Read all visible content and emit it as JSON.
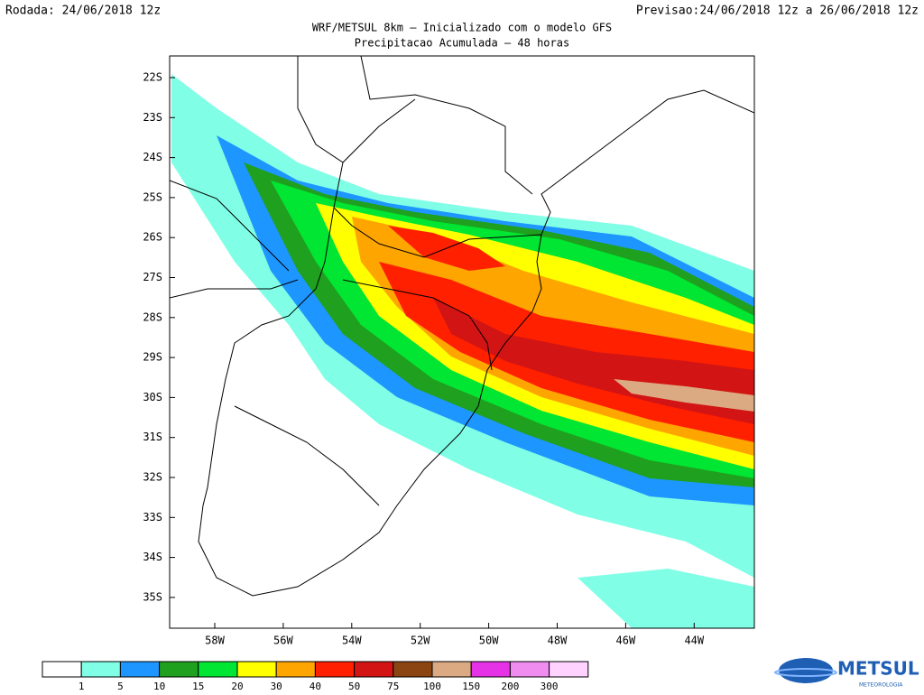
{
  "header": {
    "run": "Rodada: 24/06/2018 12z",
    "forecast": "Previsao:24/06/2018 12z a 26/06/2018 12z",
    "title": "WRF/METSUL 8km – Inicializado com o modelo GFS",
    "subtitle": "Precipitacao Acumulada – 48 horas"
  },
  "map": {
    "latitudes": [
      "22S",
      "23S",
      "24S",
      "25S",
      "26S",
      "27S",
      "28S",
      "29S",
      "30S",
      "31S",
      "32S",
      "33S",
      "34S",
      "35S"
    ],
    "longitudes": [
      "58W",
      "56W",
      "54W",
      "52W",
      "50W",
      "48W",
      "46W",
      "44W"
    ]
  },
  "colorbar": {
    "labels": [
      "1",
      "5",
      "10",
      "15",
      "20",
      "30",
      "40",
      "50",
      "75",
      "100",
      "150",
      "200",
      "300"
    ],
    "colors": [
      "#ffffff",
      "#80ffe6",
      "#1e96ff",
      "#1fa01f",
      "#00e632",
      "#ffff00",
      "#ffa500",
      "#ff2000",
      "#d21414",
      "#8b4513",
      "#dcaa82",
      "#e632e6",
      "#f08cf0",
      "#ffd2ff"
    ]
  },
  "logo": {
    "name": "METSUL",
    "tagline": "METEOROLOGIA"
  }
}
